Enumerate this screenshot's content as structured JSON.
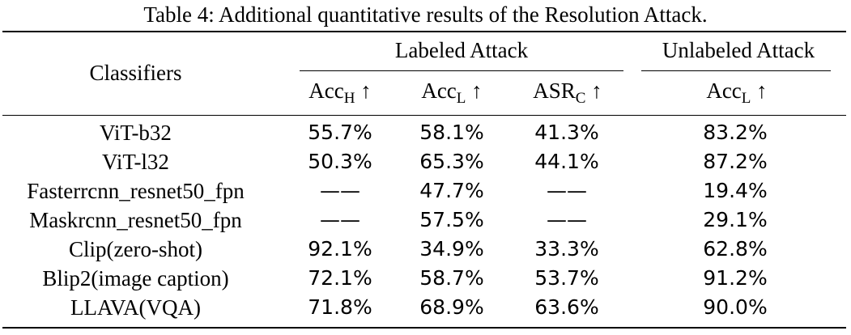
{
  "caption": "Table 4: Additional quantitative results of the Resolution Attack.",
  "header": {
    "classifiers": "Classifiers",
    "labeled_group": "Labeled Attack",
    "unlabeled_group": "Unlabeled Attack",
    "columns": [
      {
        "base": "Acc",
        "sub": "H",
        "arrow": "↑"
      },
      {
        "base": "Acc",
        "sub": "L",
        "arrow": "↑"
      },
      {
        "base": "ASR",
        "sub": "C",
        "arrow": "↑"
      },
      {
        "base": "Acc",
        "sub": "L",
        "arrow": "↑"
      }
    ]
  },
  "rows": [
    {
      "name": "ViT-b32",
      "acc_h": "55.7%",
      "acc_l": "58.1%",
      "asr_c": "41.3%",
      "unl_acc_l": "83.2%"
    },
    {
      "name": "ViT-l32",
      "acc_h": "50.3%",
      "acc_l": "65.3%",
      "asr_c": "44.1%",
      "unl_acc_l": "87.2%"
    },
    {
      "name": "Fasterrcnn_resnet50_fpn",
      "acc_h": "——",
      "acc_l": "47.7%",
      "asr_c": "——",
      "unl_acc_l": "19.4%"
    },
    {
      "name": "Maskrcnn_resnet50_fpn",
      "acc_h": "——",
      "acc_l": "57.5%",
      "asr_c": "——",
      "unl_acc_l": "29.1%"
    },
    {
      "name": "Clip(zero-shot)",
      "acc_h": "92.1%",
      "acc_l": "34.9%",
      "asr_c": "33.3%",
      "unl_acc_l": "62.8%"
    },
    {
      "name": "Blip2(image caption)",
      "acc_h": "72.1%",
      "acc_l": "58.7%",
      "asr_c": "53.7%",
      "unl_acc_l": "91.2%"
    },
    {
      "name": "LLAVA(VQA)",
      "acc_h": "71.8%",
      "acc_l": "68.9%",
      "asr_c": "63.6%",
      "unl_acc_l": "90.0%"
    }
  ]
}
